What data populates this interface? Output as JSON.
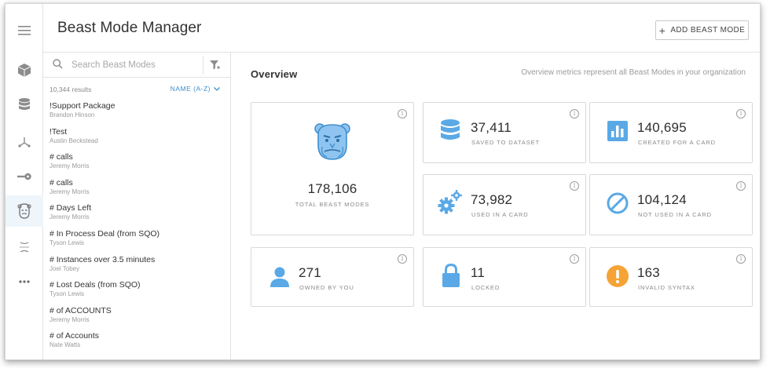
{
  "header": {
    "title": "Beast Mode Manager",
    "add_button_label": "ADD BEAST MODE",
    "add_button_icon": "plus-icon"
  },
  "rail": {
    "items": [
      {
        "icon": "menu-icon"
      },
      {
        "icon": "cube-icon"
      },
      {
        "icon": "database-icon"
      },
      {
        "icon": "dataflow-icon"
      },
      {
        "icon": "key-icon"
      },
      {
        "icon": "beast-mode-icon",
        "active": true
      },
      {
        "icon": "brackets-icon"
      },
      {
        "icon": "more-icon"
      }
    ]
  },
  "search": {
    "placeholder": "Search Beast Modes",
    "value": ""
  },
  "results": {
    "count_label": "10,344 results",
    "sort_label": "NAME (A-Z)"
  },
  "beast_modes": [
    {
      "name": "!Support Package",
      "owner": "Brandon Hinson"
    },
    {
      "name": "!Test",
      "owner": "Austin Beckstead"
    },
    {
      "name": "# calls",
      "owner": "Jeremy Morris"
    },
    {
      "name": "# calls",
      "owner": "Jeremy Morris"
    },
    {
      "name": "# Days Left",
      "owner": "Jeremy Morris"
    },
    {
      "name": "# In Process Deal (from SQO)",
      "owner": "Tyson Lewis"
    },
    {
      "name": "# Instances over 3.5 minutes",
      "owner": "Joel Tobey"
    },
    {
      "name": "# Lost Deals (from SQO)",
      "owner": "Tyson Lewis"
    },
    {
      "name": "# of ACCOUNTS",
      "owner": "Jeremy Morris"
    },
    {
      "name": "# of Accounts",
      "owner": "Nate Watts"
    }
  ],
  "overview": {
    "title": "Overview",
    "note": "Overview metrics represent all Beast Modes in your organization",
    "cards": {
      "total": {
        "value": "178,106",
        "label": "TOTAL BEAST MODES"
      },
      "saved": {
        "value": "37,411",
        "label": "SAVED TO DATASET"
      },
      "created": {
        "value": "140,695",
        "label": "CREATED FOR A CARD"
      },
      "used": {
        "value": "73,982",
        "label": "USED IN A CARD"
      },
      "not_used": {
        "value": "104,124",
        "label": "NOT USED IN A CARD"
      },
      "owned": {
        "value": "271",
        "label": "OWNED BY YOU"
      },
      "locked": {
        "value": "11",
        "label": "LOCKED"
      },
      "invalid": {
        "value": "163",
        "label": "INVALID SYNTAX"
      }
    }
  },
  "colors": {
    "accent": "#3a8fd1",
    "icon_blue": "#5aa9e6",
    "warning": "#f5a335"
  }
}
